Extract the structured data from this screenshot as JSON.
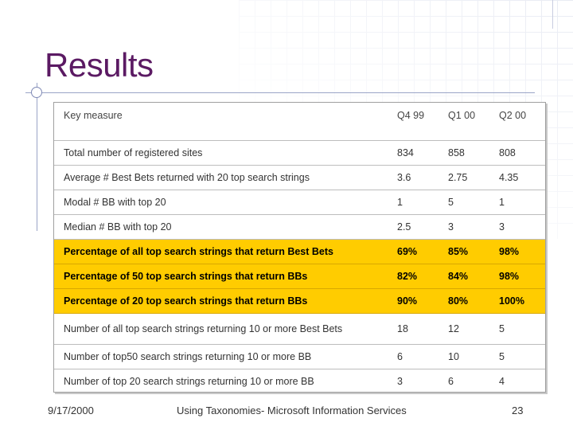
{
  "slide": {
    "title": "Results",
    "accent_color": "#5b1a63",
    "highlight_color": "#ffcc00"
  },
  "table": {
    "header": [
      "Key measure",
      "Q4 99",
      "Q1 00",
      "Q2 00"
    ],
    "rows": [
      {
        "cells": [
          "Total number of registered sites",
          "834",
          "858",
          "808"
        ],
        "highlight": false
      },
      {
        "cells": [
          "Average # Best Bets returned with 20 top search strings",
          "3.6",
          "2.75",
          "4.35"
        ],
        "highlight": false
      },
      {
        "cells": [
          "Modal # BB with top 20",
          "1",
          "5",
          "1"
        ],
        "highlight": false
      },
      {
        "cells": [
          "Median # BB with top 20",
          "2.5",
          "3",
          "3"
        ],
        "highlight": false
      },
      {
        "cells": [
          "Percentage of all top search strings that return Best Bets",
          "69%",
          "85%",
          "98%"
        ],
        "highlight": true
      },
      {
        "cells": [
          "Percentage of 50 top search strings that return BBs",
          "82%",
          "84%",
          "98%"
        ],
        "highlight": true
      },
      {
        "cells": [
          "Percentage of 20 top search strings that return BBs",
          "90%",
          "80%",
          "100%"
        ],
        "highlight": true
      },
      {
        "cells": [
          "Number of all top search strings returning 10 or more Best Bets",
          "18",
          "12",
          "5"
        ],
        "highlight": false
      },
      {
        "cells": [
          "Number of top50 search strings returning 10 or more BB",
          "6",
          "10",
          "5"
        ],
        "highlight": false
      },
      {
        "cells": [
          "Number of top 20 search strings returning 10 or more BB",
          "3",
          "6",
          "4"
        ],
        "highlight": false
      }
    ]
  },
  "footer": {
    "date": "9/17/2000",
    "center": "Using Taxonomies- Microsoft Information Services",
    "page": "23"
  }
}
